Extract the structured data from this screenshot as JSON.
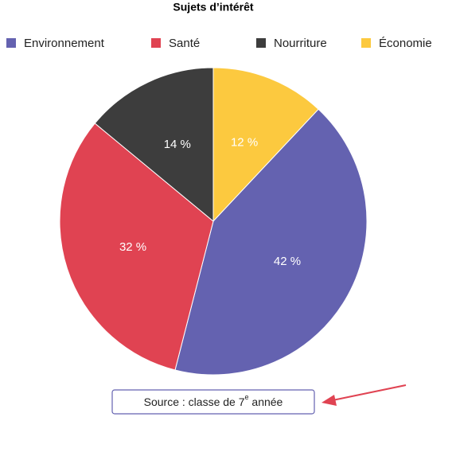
{
  "chart_data": {
    "type": "pie",
    "title": "Sujets d’intérêt",
    "categories": [
      "Environnement",
      "Santé",
      "Nourriture",
      "Économie"
    ],
    "values": [
      42,
      32,
      14,
      12
    ],
    "value_labels": [
      "42 %",
      "32 %",
      "14 %",
      "12 %"
    ],
    "colors": [
      "#6462b0",
      "#e04352",
      "#3d3d3d",
      "#fcc93f"
    ],
    "legend": "top",
    "source": {
      "text": "Source : classe de 7",
      "superscript": "e",
      "text_after": " année"
    }
  }
}
